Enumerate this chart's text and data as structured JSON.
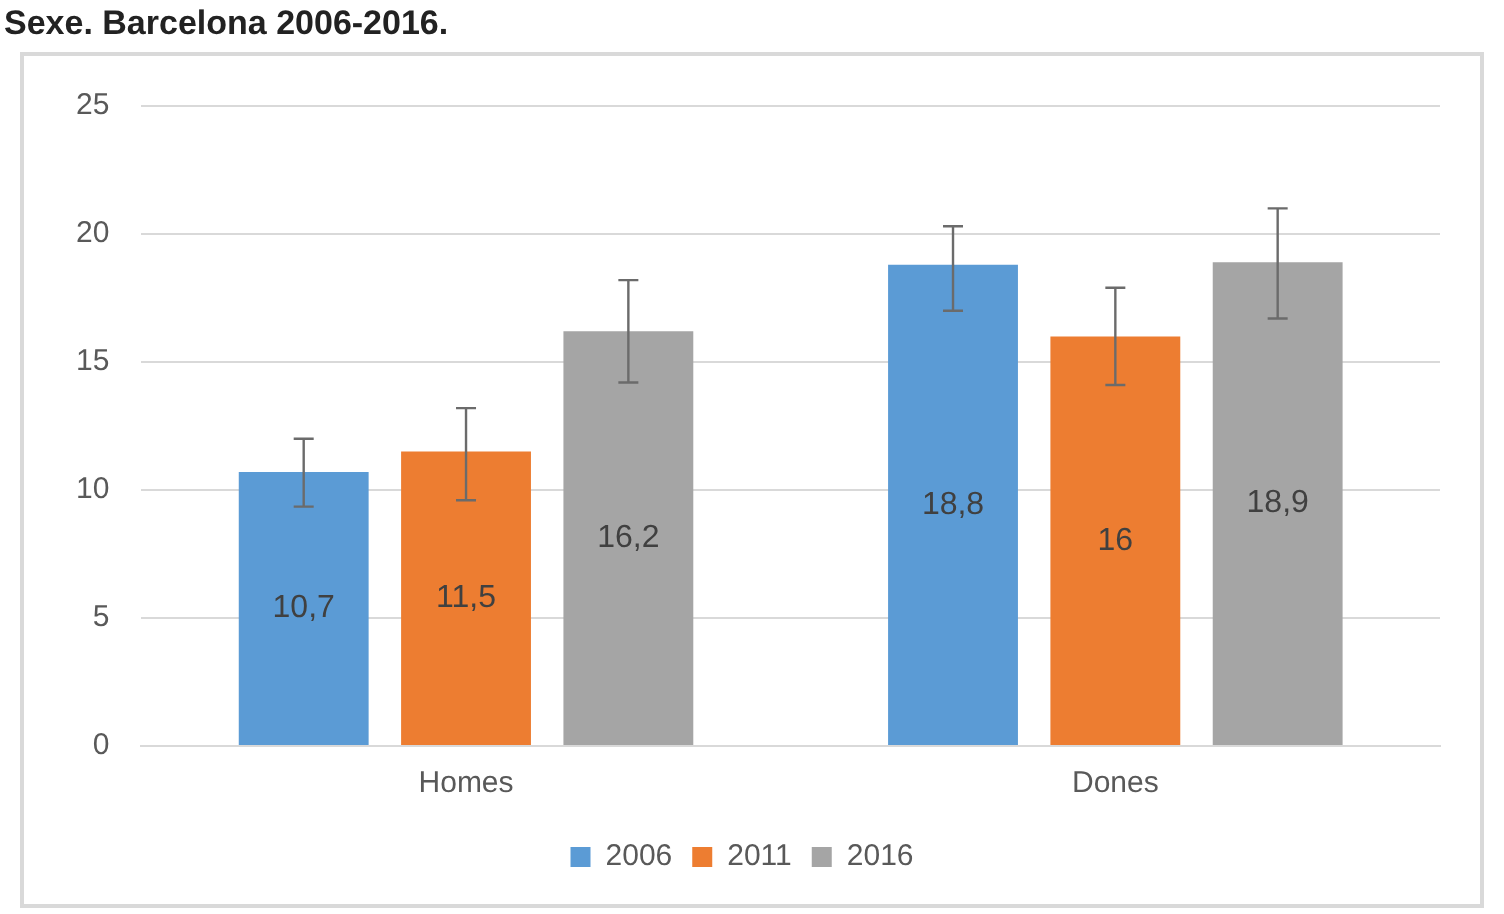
{
  "chart_data": {
    "type": "bar",
    "title": "Sexe. Barcelona 2006-2016.",
    "categories": [
      "Homes",
      "Dones"
    ],
    "series": [
      {
        "name": "2006",
        "color": "#5b9bd5",
        "values": [
          10.7,
          18.8
        ],
        "errors": [
          [
            9.35,
            12.0
          ],
          [
            17.0,
            20.3
          ]
        ],
        "value_labels": [
          "10,7",
          "18,8"
        ]
      },
      {
        "name": "2011",
        "color": "#ed7d31",
        "values": [
          11.5,
          16
        ],
        "errors": [
          [
            9.6,
            13.2
          ],
          [
            14.1,
            17.9
          ]
        ],
        "value_labels": [
          "11,5",
          "16"
        ]
      },
      {
        "name": "2016",
        "color": "#a5a5a5",
        "values": [
          16.2,
          18.9
        ],
        "errors": [
          [
            14.2,
            18.2
          ],
          [
            16.7,
            21.0
          ]
        ],
        "value_labels": [
          "16,2",
          "18,9"
        ]
      }
    ],
    "ylim": [
      0,
      25
    ],
    "yticks": [
      0,
      5,
      10,
      15,
      20,
      25
    ],
    "grid": "y",
    "legend": "bottom"
  }
}
